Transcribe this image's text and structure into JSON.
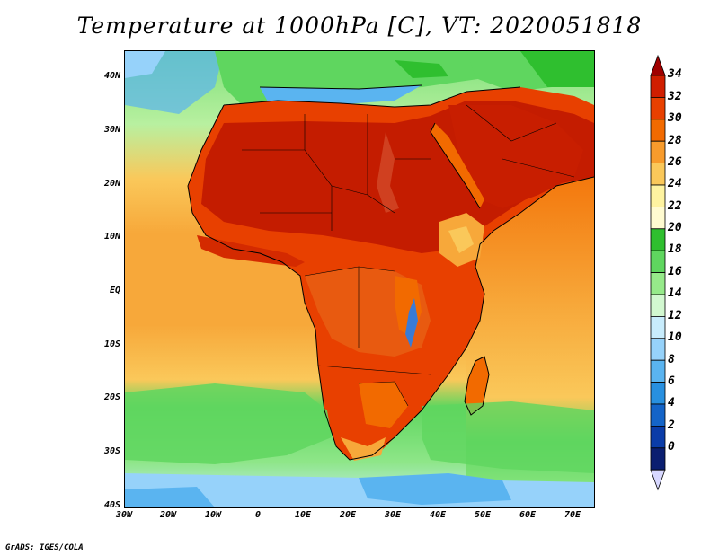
{
  "title": "Temperature at 1000hPa [C], VT: 2020051818",
  "credit": "GrADS: IGES/COLA",
  "latitude_labels": [
    "40N",
    "30N",
    "20N",
    "10N",
    "EQ",
    "10S",
    "20S",
    "30S",
    "40S"
  ],
  "longitude_labels": [
    "30W",
    "20W",
    "10W",
    "0",
    "10E",
    "20E",
    "30E",
    "40E",
    "50E",
    "60E",
    "70E"
  ],
  "colorbar": {
    "labels": [
      "34",
      "32",
      "30",
      "28",
      "26",
      "24",
      "22",
      "20",
      "18",
      "16",
      "14",
      "12",
      "10",
      "8",
      "6",
      "4",
      "2",
      "0"
    ],
    "colors": [
      "#a00000",
      "#d01e00",
      "#e84000",
      "#f26a00",
      "#f79b2c",
      "#fac85a",
      "#fef3a0",
      "#fffbd0",
      "#2fbf2f",
      "#5fd65f",
      "#96ea8a",
      "#d2f8d0",
      "#c8ecfc",
      "#96d2fa",
      "#5ab4f0",
      "#2890e0",
      "#1464c8",
      "#0a3ca8",
      "#0a1e70"
    ],
    "low_arrow": "#d8d8ff"
  },
  "colors": {
    "ocean_cool": "#5fd65f",
    "ocean_warm": "#f7a83a",
    "hot_land": "#d42a00",
    "very_hot": "#c41c00",
    "mediterranean": "#5ab4f0",
    "cold_south": "#96d2fa"
  }
}
